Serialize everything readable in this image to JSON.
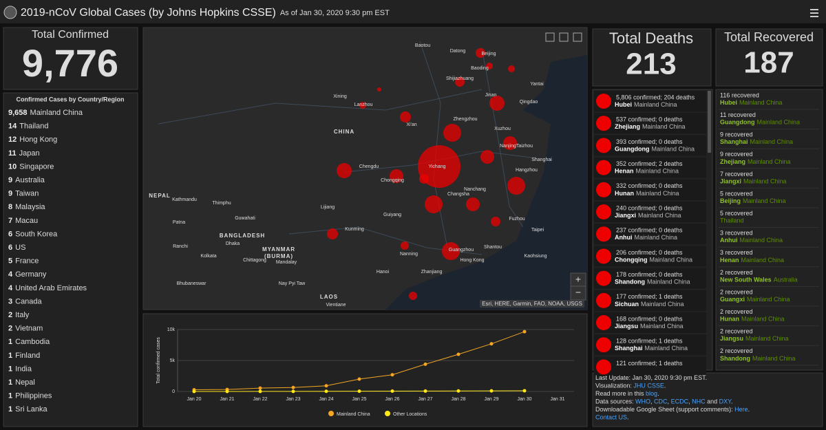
{
  "header": {
    "title": "2019-nCoV Global Cases (by Johns Hopkins CSSE)",
    "subtitle": "As of Jan 30, 2020 9:30 pm EST"
  },
  "total_confirmed": {
    "label": "Total Confirmed",
    "value": "9,776"
  },
  "country_list": {
    "title": "Confirmed Cases by Country/Region",
    "items": [
      {
        "count": "9,658",
        "name": "Mainland China"
      },
      {
        "count": 14,
        "name": "Thailand"
      },
      {
        "count": 12,
        "name": "Hong Kong"
      },
      {
        "count": 11,
        "name": "Japan"
      },
      {
        "count": 10,
        "name": "Singapore"
      },
      {
        "count": 9,
        "name": "Australia"
      },
      {
        "count": 9,
        "name": "Taiwan"
      },
      {
        "count": 8,
        "name": "Malaysia"
      },
      {
        "count": 7,
        "name": "Macau"
      },
      {
        "count": 6,
        "name": "South Korea"
      },
      {
        "count": 6,
        "name": "US"
      },
      {
        "count": 5,
        "name": "France"
      },
      {
        "count": 4,
        "name": "Germany"
      },
      {
        "count": 4,
        "name": "United Arab Emirates"
      },
      {
        "count": 3,
        "name": "Canada"
      },
      {
        "count": 2,
        "name": "Italy"
      },
      {
        "count": 2,
        "name": "Vietnam"
      },
      {
        "count": 1,
        "name": "Cambodia"
      },
      {
        "count": 1,
        "name": "Finland"
      },
      {
        "count": 1,
        "name": "India"
      },
      {
        "count": 1,
        "name": "Nepal"
      },
      {
        "count": 1,
        "name": "Philippines"
      },
      {
        "count": 1,
        "name": "Sri Lanka"
      }
    ]
  },
  "total_deaths": {
    "label": "Total Deaths",
    "value": 213
  },
  "total_recovered": {
    "label": "Total Recovered",
    "value": 187
  },
  "deaths_list": [
    {
      "text": "5,806 confirmed; 204 deaths",
      "region": "Hubei",
      "country": "Mainland China"
    },
    {
      "text": "537 confirmed; 0 deaths",
      "region": "Zhejiang",
      "country": "Mainland China"
    },
    {
      "text": "393 confirmed; 0 deaths",
      "region": "Guangdong",
      "country": "Mainland China"
    },
    {
      "text": "352 confirmed; 2 deaths",
      "region": "Henan",
      "country": "Mainland China"
    },
    {
      "text": "332 confirmed; 0 deaths",
      "region": "Hunan",
      "country": "Mainland China"
    },
    {
      "text": "240 confirmed; 0 deaths",
      "region": "Jiangxi",
      "country": "Mainland China"
    },
    {
      "text": "237 confirmed; 0 deaths",
      "region": "Anhui",
      "country": "Mainland China"
    },
    {
      "text": "206 confirmed; 0 deaths",
      "region": "Chongqing",
      "country": "Mainland China"
    },
    {
      "text": "178 confirmed; 0 deaths",
      "region": "Shandong",
      "country": "Mainland China"
    },
    {
      "text": "177 confirmed; 1 deaths",
      "region": "Sichuan",
      "country": "Mainland China"
    },
    {
      "text": "168 confirmed; 0 deaths",
      "region": "Jiangsu",
      "country": "Mainland China"
    },
    {
      "text": "128 confirmed; 1 deaths",
      "region": "Shanghai",
      "country": "Mainland China"
    },
    {
      "text": "121 confirmed; 1 deaths"
    }
  ],
  "recovered_list": [
    {
      "text": "116 recovered",
      "region": "Hubei",
      "country": "Mainland China"
    },
    {
      "text": "11 recovered",
      "region": "Guangdong",
      "country": "Mainland China"
    },
    {
      "text": "9 recovered",
      "region": "Shanghai",
      "country": "Mainland China"
    },
    {
      "text": "9 recovered",
      "region": "Zhejiang",
      "country": "Mainland China"
    },
    {
      "text": "7 recovered",
      "region": "Jiangxi",
      "country": "Mainland China"
    },
    {
      "text": "5 recovered",
      "region": "Beijing",
      "country": "Mainland China"
    },
    {
      "text": "5 recovered",
      "country": "Thailand"
    },
    {
      "text": "3 recovered",
      "region": "Anhui",
      "country": "Mainland China"
    },
    {
      "text": "3 recovered",
      "region": "Henan",
      "country": "Mainland China"
    },
    {
      "text": "2 recovered",
      "region": "New South Wales",
      "country": "Australia"
    },
    {
      "text": "2 recovered",
      "region": "Guangxi",
      "country": "Mainland China"
    },
    {
      "text": "2 recovered",
      "region": "Hunan",
      "country": "Mainland China"
    },
    {
      "text": "2 recovered",
      "region": "Jiangsu",
      "country": "Mainland China"
    },
    {
      "text": "2 recovered",
      "region": "Shandong",
      "country": "Mainland China"
    }
  ],
  "info": [
    [
      {
        "text": "Last Update: Jan 30, 2020 9:30 pm EST."
      }
    ],
    [
      {
        "text": "Visualization: "
      },
      {
        "text": "JHU CSSE",
        "link": true
      },
      {
        "text": "."
      }
    ],
    [
      {
        "text": "Read more in this "
      },
      {
        "text": "blog",
        "link": true
      },
      {
        "text": "."
      }
    ],
    [
      {
        "text": "Data sources: "
      },
      {
        "text": "WHO",
        "link": true
      },
      {
        "text": ", "
      },
      {
        "text": "CDC",
        "link": true
      },
      {
        "text": ", "
      },
      {
        "text": "ECDC",
        "link": true
      },
      {
        "text": ", "
      },
      {
        "text": "NHC",
        "link": true
      },
      {
        "text": " and "
      },
      {
        "text": "DXY",
        "link": true
      },
      {
        "text": "."
      }
    ],
    [
      {
        "text": "Downloadable Google Sheet (support comments): "
      },
      {
        "text": "Here",
        "link": true
      },
      {
        "text": "."
      }
    ],
    [
      {
        "text": "Contact US",
        "link": true
      },
      {
        "text": "."
      }
    ]
  ],
  "map": {
    "attribution": "Esri, HERE, Garmin, FAO, NOAA, USGS",
    "zoom_in": "+",
    "zoom_out": "−",
    "labels": [
      "Baotou",
      "Datong",
      "Beijing",
      "Baoding",
      "Shijiazhuang",
      "Jinan",
      "Yantai",
      "Qingdao",
      "Zhengzhou",
      "Xuzhou",
      "Xi'an",
      "Lanzhou",
      "Xining",
      "CHINA",
      "Chengdu",
      "Chongqing",
      "Yichang",
      "Nanjing",
      "Taizhou",
      "Shanghai",
      "Hangzhou",
      "Nanchang",
      "Changsha",
      "Fuzhou",
      "Taipei",
      "Kaohsiung",
      "Guiyang",
      "Kunming",
      "Nanning",
      "Guangzhou",
      "Hong Kong",
      "Shantou",
      "Hanoi",
      "Zhanjiang",
      "Lijiang",
      "NEPAL",
      "Kathmandu",
      "Thimphu",
      "Patna",
      "Guwahati",
      "BANGLADESH",
      "Dhaka",
      "Ranchi",
      "Kolkata",
      "MYANMAR",
      "(BURMA)",
      "Mandalay",
      "Chittagong",
      "Bhubaneswar",
      "Nay Pyi Taw",
      "LAOS",
      "Vientiane"
    ]
  },
  "chart_data": {
    "type": "line",
    "y_label": "Total confirmed cases",
    "categories": [
      "Jan 20",
      "Jan 21",
      "Jan 22",
      "Jan 23",
      "Jan 24",
      "Jan 25",
      "Jan 26",
      "Jan 27",
      "Jan 28",
      "Jan 29",
      "Jan 30",
      "Jan 31"
    ],
    "series": [
      {
        "name": "Mainland China",
        "color": "#f5a623",
        "values": [
          278,
          326,
          547,
          639,
          916,
          2000,
          2700,
          4400,
          6000,
          7700,
          9658,
          null
        ]
      },
      {
        "name": "Other Locations",
        "color": "#ffe81a",
        "values": [
          4,
          6,
          8,
          14,
          25,
          40,
          57,
          64,
          87,
          100,
          118,
          null
        ]
      }
    ],
    "ylim": [
      0,
      10000
    ],
    "yticks": [
      0,
      {
        "value": 5000,
        "label": "5k"
      },
      {
        "value": 10000,
        "label": "10k"
      }
    ],
    "grid": true,
    "legend": "bottom"
  }
}
